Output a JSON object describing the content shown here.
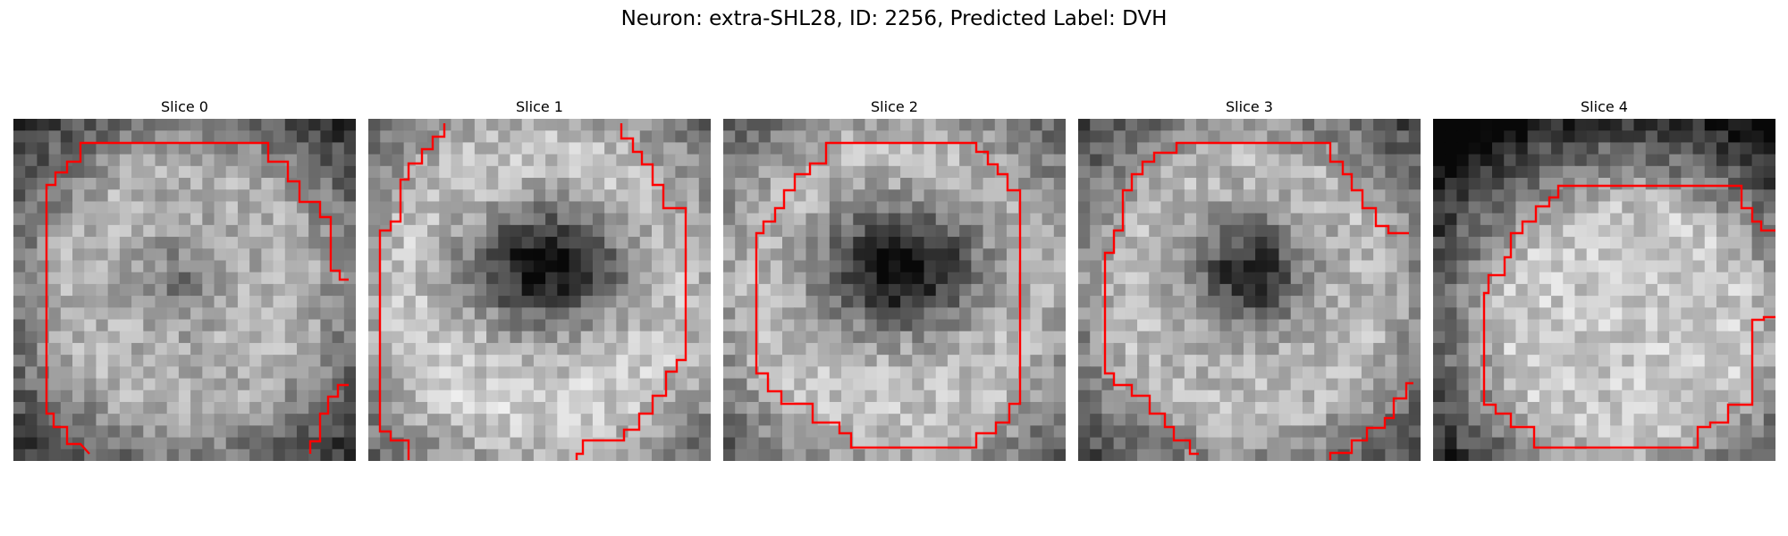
{
  "figure": {
    "title": "Neuron: extra-SHL28, ID: 2256, Predicted Label: DVH"
  },
  "slices": [
    {
      "title": "Slice 0",
      "image": "grayscale-cell-patch-0",
      "contour_color": "#ff0000"
    },
    {
      "title": "Slice 1",
      "image": "grayscale-cell-patch-1",
      "contour_color": "#ff0000"
    },
    {
      "title": "Slice 2",
      "image": "grayscale-cell-patch-2",
      "contour_color": "#ff0000"
    },
    {
      "title": "Slice 3",
      "image": "grayscale-cell-patch-3",
      "contour_color": "#ff0000"
    },
    {
      "title": "Slice 4",
      "image": "grayscale-cell-patch-4",
      "contour_color": "#ff0000"
    }
  ]
}
